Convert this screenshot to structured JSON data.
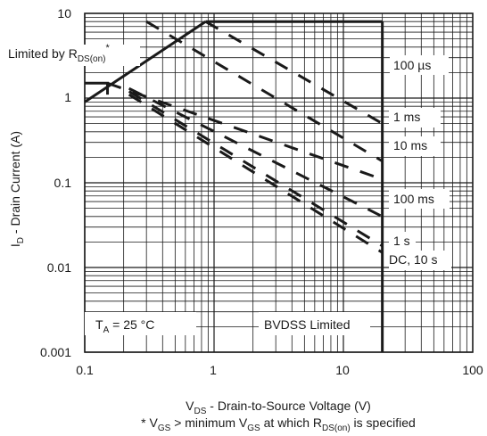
{
  "chart_data": {
    "type": "line",
    "x_scale": "log",
    "y_scale": "log",
    "xlim": [
      0.1,
      100
    ],
    "ylim": [
      0.001,
      10
    ],
    "grid": true,
    "x_ticks": [
      "0.1",
      "1",
      "10",
      "100"
    ],
    "y_ticks": [
      "10",
      "1",
      "0.1",
      "0.01",
      "0.001"
    ],
    "xlabel": {
      "main": "V",
      "sub": "DS",
      "rest": " - Drain-to-Source Voltage (V)"
    },
    "ylabel": {
      "main": "I",
      "sub": "D",
      "rest": " - Drain Current (A)"
    },
    "footnote": {
      "p1": "* V",
      "s1": "GS",
      "p2": " > minimum V",
      "s2": "GS",
      "p3": " at which R",
      "s3": "DS(on)",
      "p4": " is specified"
    },
    "limit_label": {
      "main": "Limited by R",
      "sub": "DS(on)",
      "sup": "*"
    },
    "ta_label": {
      "main": "T",
      "sub": "A",
      "rest": " = 25 °C"
    },
    "bvdss_label": "BVDSS Limited",
    "current_limit_A": 8,
    "bvdss_limit_V": 20,
    "rds_limit": [
      {
        "x": 0.1,
        "y": 0.9
      },
      {
        "x": 0.86,
        "y": 8
      }
    ],
    "series": [
      {
        "name": "100 µs",
        "values": [
          {
            "x": 0.86,
            "y": 8
          },
          {
            "x": 20,
            "y": 0.5
          }
        ]
      },
      {
        "name": "1 ms",
        "values": [
          {
            "x": 0.3,
            "y": 8
          },
          {
            "x": 20,
            "y": 0.18
          }
        ]
      },
      {
        "name": "10 ms",
        "values": [
          {
            "x": 0.15,
            "y": 1.5
          },
          {
            "x": 20,
            "y": 0.11
          }
        ]
      },
      {
        "name": "100 ms",
        "values": [
          {
            "x": 0.22,
            "y": 1.3
          },
          {
            "x": 20,
            "y": 0.04
          }
        ]
      },
      {
        "name": "1 s",
        "values": [
          {
            "x": 0.22,
            "y": 1.2
          },
          {
            "x": 20,
            "y": 0.018
          }
        ]
      },
      {
        "name": "DC, 10 s",
        "values": [
          {
            "x": 0.22,
            "y": 1.1
          },
          {
            "x": 20,
            "y": 0.015
          }
        ]
      }
    ]
  }
}
